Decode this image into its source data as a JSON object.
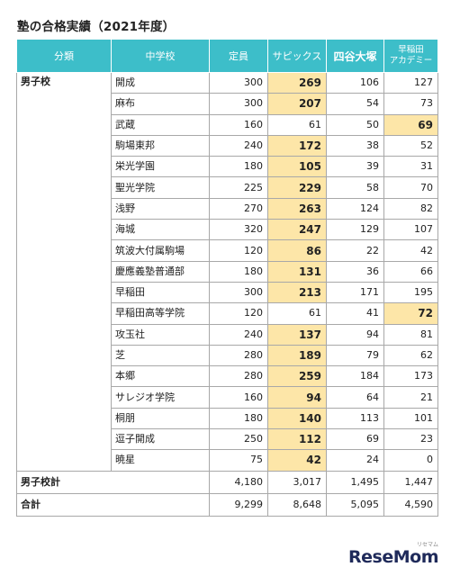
{
  "title": "塾の合格実績（2021年度）",
  "headers": {
    "category": "分類",
    "school": "中学校",
    "capacity": "定員",
    "sapix": "サピックス",
    "yotsuya": "四谷大塚",
    "waseda_line1": "早稲田",
    "waseda_line2": "アカデミー"
  },
  "group_label": "男子校",
  "highlight_color": "#fde6a8",
  "header_color": "#3dbec9",
  "rows": [
    {
      "school": "開成",
      "capacity": "300",
      "sapix": "269",
      "yotsuya": "106",
      "waseda": "127",
      "top": "sapix"
    },
    {
      "school": "麻布",
      "capacity": "300",
      "sapix": "207",
      "yotsuya": "54",
      "waseda": "73",
      "top": "sapix"
    },
    {
      "school": "武蔵",
      "capacity": "160",
      "sapix": "61",
      "yotsuya": "50",
      "waseda": "69",
      "top": "waseda"
    },
    {
      "school": "駒場東邦",
      "capacity": "240",
      "sapix": "172",
      "yotsuya": "38",
      "waseda": "52",
      "top": "sapix"
    },
    {
      "school": "栄光学園",
      "capacity": "180",
      "sapix": "105",
      "yotsuya": "39",
      "waseda": "31",
      "top": "sapix"
    },
    {
      "school": "聖光学院",
      "capacity": "225",
      "sapix": "229",
      "yotsuya": "58",
      "waseda": "70",
      "top": "sapix"
    },
    {
      "school": "浅野",
      "capacity": "270",
      "sapix": "263",
      "yotsuya": "124",
      "waseda": "82",
      "top": "sapix"
    },
    {
      "school": "海城",
      "capacity": "320",
      "sapix": "247",
      "yotsuya": "129",
      "waseda": "107",
      "top": "sapix"
    },
    {
      "school": "筑波大付属駒場",
      "capacity": "120",
      "sapix": "86",
      "yotsuya": "22",
      "waseda": "42",
      "top": "sapix"
    },
    {
      "school": "慶應義塾普通部",
      "capacity": "180",
      "sapix": "131",
      "yotsuya": "36",
      "waseda": "66",
      "top": "sapix"
    },
    {
      "school": "早稲田",
      "capacity": "300",
      "sapix": "213",
      "yotsuya": "171",
      "waseda": "195",
      "top": "sapix"
    },
    {
      "school": "早稲田高等学院",
      "capacity": "120",
      "sapix": "61",
      "yotsuya": "41",
      "waseda": "72",
      "top": "waseda"
    },
    {
      "school": "攻玉社",
      "capacity": "240",
      "sapix": "137",
      "yotsuya": "94",
      "waseda": "81",
      "top": "sapix"
    },
    {
      "school": "芝",
      "capacity": "280",
      "sapix": "189",
      "yotsuya": "79",
      "waseda": "62",
      "top": "sapix"
    },
    {
      "school": "本郷",
      "capacity": "280",
      "sapix": "259",
      "yotsuya": "184",
      "waseda": "173",
      "top": "sapix"
    },
    {
      "school": "サレジオ学院",
      "capacity": "160",
      "sapix": "94",
      "yotsuya": "64",
      "waseda": "21",
      "top": "sapix"
    },
    {
      "school": "桐朋",
      "capacity": "180",
      "sapix": "140",
      "yotsuya": "113",
      "waseda": "101",
      "top": "sapix"
    },
    {
      "school": "逗子開成",
      "capacity": "250",
      "sapix": "112",
      "yotsuya": "69",
      "waseda": "23",
      "top": "sapix"
    },
    {
      "school": "暁星",
      "capacity": "75",
      "sapix": "42",
      "yotsuya": "24",
      "waseda": "0",
      "top": "sapix"
    }
  ],
  "totals": [
    {
      "label": "男子校計",
      "capacity": "4,180",
      "sapix": "3,017",
      "yotsuya": "1,495",
      "waseda": "1,447"
    },
    {
      "label": "合計",
      "capacity": "9,299",
      "sapix": "8,648",
      "yotsuya": "5,095",
      "waseda": "4,590"
    }
  ],
  "logo": {
    "text": "ReseMom",
    "small": "リセマム"
  }
}
